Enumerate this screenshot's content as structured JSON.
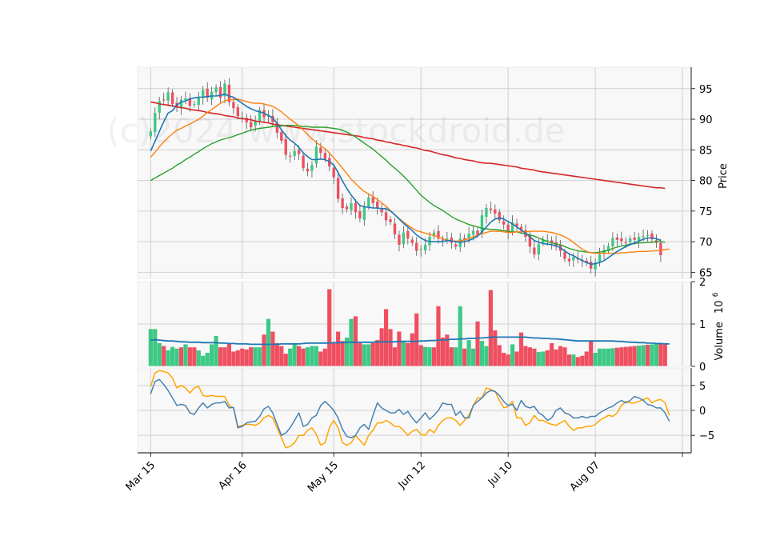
{
  "watermark": "(c)2024 www.stockdroid.de",
  "x_tick_labels": [
    "Mar 15",
    "Apr 16",
    "May 15",
    "Jun 12",
    "Jul 10",
    "Aug 07"
  ],
  "colors": {
    "up": "#3dc985",
    "down": "#ef4f60",
    "wick": "#555555",
    "ma_short": "#1f77b4",
    "ma_mid": "#ff7f0e",
    "ma_long": "#2ca02c",
    "ma_200": "#d62728",
    "vol_ma": "#1f77b4",
    "osc_a": "#4682b4",
    "osc_b": "#ffa500",
    "panel_bg": "#f8f8f8",
    "grid": "#d0d0d0"
  },
  "chart_data": [
    {
      "type": "candlestick",
      "ylabel": "Price",
      "ylim": [
        64,
        98.5
      ],
      "yticks": [
        65,
        70,
        75,
        80,
        85,
        90,
        95
      ],
      "x_range": [
        -3,
        124
      ],
      "x_tick_positions": [
        0,
        21,
        42,
        62,
        82,
        102,
        122
      ],
      "grid": true,
      "ohlc_close": [
        88,
        91,
        93,
        93.2,
        94.4,
        92.5,
        92,
        93.2,
        93.4,
        92.2,
        92.5,
        93.5,
        94.8,
        93.5,
        94.5,
        95.2,
        93.5,
        95.8,
        92.8,
        91.8,
        90.5,
        90.3,
        89.5,
        88.7,
        89.8,
        91.5,
        90.3,
        90.8,
        89.5,
        87.8,
        86.5,
        84.2,
        84,
        84.8,
        84.3,
        82,
        81.5,
        82.5,
        85.5,
        84.5,
        83.5,
        82.3,
        80.5,
        77,
        75.5,
        75.3,
        76.3,
        74.8,
        73.8,
        75.8,
        77.2,
        76.3,
        75.5,
        74.8,
        73.5,
        73.2,
        71.2,
        69.5,
        71.5,
        70.5,
        69.8,
        68.5,
        68.8,
        69.5,
        70.8,
        71.5,
        70.5,
        70.3,
        70.5,
        69.8,
        69.2,
        70.5,
        70.2,
        71.3,
        71.8,
        71.2,
        74.3,
        75.5,
        75.2,
        74.6,
        73.5,
        72.8,
        71.5,
        73.2,
        72.5,
        71.8,
        70.8,
        69.2,
        67.9,
        69.6,
        70.4,
        70.3,
        69.8,
        69.2,
        68.5,
        67.2,
        66.8,
        67.5,
        67.1,
        66.8,
        66.5,
        65.6,
        66.6,
        67.9,
        68.7,
        69.3,
        70.6,
        70.3,
        70.1,
        69.9,
        70.5,
        70.3,
        70.8,
        70.9,
        71.1,
        70.4,
        69.8,
        67.8
      ],
      "ma_short": [
        84.8,
        86.4,
        88,
        89.6,
        91,
        91.4,
        92.3,
        92.8,
        93,
        93.3,
        93.5,
        93.6,
        93.6,
        93.7,
        93.8,
        93.8,
        93.9,
        94.1,
        93.8,
        93.6,
        93.1,
        92.6,
        92.1,
        91.7,
        91.4,
        91.2,
        91,
        90.6,
        90.2,
        89.3,
        88.3,
        87.3,
        86.6,
        86.1,
        85.4,
        84.5,
        83.9,
        83.4,
        83.4,
        83.5,
        83.4,
        83.1,
        82.5,
        81.3,
        79.9,
        78.7,
        77.6,
        76.7,
        75.9,
        75.7,
        75.6,
        75.5,
        75.5,
        75.4,
        75.4,
        75,
        74.4,
        73.7,
        73,
        72.4,
        71.8,
        71.1,
        70.6,
        70.2,
        70,
        70,
        70,
        70,
        70.2,
        70.1,
        70,
        69.9,
        70,
        70.2,
        70.5,
        70.9,
        71.6,
        72.4,
        73.2,
        73.7,
        73.9,
        73.7,
        73.3,
        72.9,
        72.4,
        71.9,
        71.4,
        70.8,
        70.2,
        69.9,
        69.7,
        69.6,
        69.5,
        69.3,
        69,
        68.5,
        68,
        67.7,
        67.3,
        66.9,
        66.6,
        66.3,
        66.4,
        66.6,
        66.9,
        67.4,
        67.9,
        68.4,
        68.8,
        69.2,
        69.5,
        69.8,
        70.1,
        70.4,
        70.6,
        70.6,
        70.5,
        70.2
      ],
      "ma_mid": [
        83.8,
        84.6,
        85.5,
        86.3,
        87,
        87.6,
        88.2,
        88.5,
        88.9,
        89.2,
        89.6,
        90,
        90.5,
        91.1,
        91.6,
        92.1,
        92.6,
        93,
        93.2,
        93.2,
        93.3,
        93.1,
        92.9,
        92.7,
        92.6,
        92.6,
        92.5,
        92.3,
        92.1,
        91.7,
        91.2,
        90.6,
        90,
        89.5,
        88.9,
        88.2,
        87.5,
        86.8,
        86.2,
        85.7,
        85.2,
        84.5,
        83.7,
        82.9,
        82,
        81.1,
        80.2,
        79.5,
        78.8,
        78.2,
        77.8,
        77.4,
        76.9,
        76.3,
        75.8,
        75.1,
        74.4,
        73.8,
        73.2,
        72.7,
        72.2,
        71.8,
        71.6,
        71.4,
        71.2,
        71,
        70.8,
        70.5,
        70.2,
        70.1,
        70.1,
        70.1,
        70.3,
        70.5,
        70.8,
        71.1,
        71.3,
        71.5,
        71.7,
        71.7,
        71.7,
        71.6,
        71.5,
        71.5,
        71.6,
        71.6,
        71.6,
        71.7,
        71.7,
        71.7,
        71.7,
        71.6,
        71.5,
        71.3,
        71.1,
        70.8,
        70.4,
        69.9,
        69.3,
        68.8,
        68.4,
        68.2,
        68.1,
        68.1,
        68.1,
        68.1,
        68.1,
        68.1,
        68.2,
        68.2,
        68.3,
        68.3,
        68.4,
        68.4,
        68.4,
        68.5,
        68.5,
        68.6,
        68.7,
        68.8
      ],
      "ma_long": [
        80,
        80.4,
        80.8,
        81.2,
        81.6,
        82,
        82.5,
        82.9,
        83.4,
        83.8,
        84.3,
        84.7,
        85.2,
        85.6,
        86,
        86.3,
        86.6,
        86.8,
        87,
        87.2,
        87.5,
        87.7,
        88,
        88.2,
        88.4,
        88.5,
        88.6,
        88.7,
        88.8,
        88.9,
        88.9,
        89,
        89,
        89,
        88.9,
        88.8,
        88.8,
        88.7,
        88.7,
        88.7,
        88.7,
        88.6,
        88.5,
        88.4,
        88.2,
        87.9,
        87.5,
        87.1,
        86.6,
        86.1,
        85.6,
        85.1,
        84.5,
        83.9,
        83.3,
        82.6,
        82,
        81.4,
        80.7,
        80,
        79.2,
        78.4,
        77.6,
        77,
        76.4,
        75.9,
        75.5,
        75.1,
        74.6,
        74.1,
        73.7,
        73.4,
        73.1,
        72.8,
        72.6,
        72.4,
        72.2,
        72.1,
        72,
        72,
        71.9,
        71.8,
        71.7,
        71.6,
        71.6,
        71.4,
        71.3,
        71.1,
        70.9,
        70.6,
        70.3,
        70,
        69.8,
        69.6,
        69.5,
        69.2,
        68.9,
        68.7,
        68.5,
        68.4,
        68.3,
        68.2,
        68.2,
        68.3,
        68.4,
        68.6,
        68.9,
        69.1,
        69.3,
        69.4,
        69.6,
        69.7,
        69.8,
        69.8,
        69.9,
        69.9,
        70,
        70,
        69.9
      ],
      "ma_200": [
        92.8,
        92.7,
        92.5,
        92.4,
        92.3,
        92.2,
        92,
        91.9,
        91.8,
        91.6,
        91.5,
        91.4,
        91.3,
        91.1,
        91,
        90.9,
        90.8,
        90.6,
        90.5,
        90.4,
        90.2,
        90.1,
        90,
        89.9,
        89.7,
        89.6,
        89.5,
        89.4,
        89.2,
        89.1,
        89,
        88.9,
        88.8,
        88.7,
        88.6,
        88.5,
        88.4,
        88.3,
        88.2,
        88.1,
        88,
        87.9,
        87.8,
        87.7,
        87.6,
        87.5,
        87.4,
        87.3,
        87.2,
        87,
        86.9,
        86.8,
        86.6,
        86.5,
        86.3,
        86.2,
        86,
        85.9,
        85.7,
        85.6,
        85.4,
        85.3,
        85.1,
        84.9,
        84.8,
        84.6,
        84.4,
        84.2,
        84.1,
        83.9,
        83.7,
        83.6,
        83.4,
        83.3,
        83.2,
        83,
        82.9,
        82.8,
        82.8,
        82.7,
        82.6,
        82.5,
        82.4,
        82.3,
        82.2,
        82,
        81.9,
        81.8,
        81.7,
        81.5,
        81.4,
        81.3,
        81.2,
        81.1,
        81,
        80.9,
        80.8,
        80.7,
        80.6,
        80.5,
        80.4,
        80.3,
        80.2,
        80.1,
        80,
        79.9,
        79.8,
        79.7,
        79.6,
        79.5,
        79.4,
        79.3,
        79.2,
        79.1,
        79,
        78.9,
        78.8,
        78.8,
        78.7
      ]
    },
    {
      "type": "bar",
      "ylabel": "Volume",
      "yunit": "10",
      "yunit_exp": "6",
      "ylim": [
        0,
        2
      ],
      "yticks": [
        0,
        1,
        2
      ],
      "direction": [
        "up",
        "up",
        "up",
        "down",
        "up",
        "up",
        "up",
        "down",
        "up",
        "down",
        "down",
        "up",
        "up",
        "up",
        "up",
        "up",
        "down",
        "down",
        "down",
        "down",
        "down",
        "down",
        "down",
        "down",
        "up",
        "up",
        "down",
        "up",
        "down",
        "down",
        "down",
        "down",
        "up",
        "up",
        "down",
        "down",
        "up",
        "up",
        "up",
        "down",
        "down",
        "down",
        "down",
        "down",
        "down",
        "up",
        "up",
        "down",
        "down",
        "up",
        "up",
        "down",
        "down",
        "down",
        "down",
        "down",
        "down",
        "down",
        "up",
        "down",
        "down",
        "down",
        "down",
        "up",
        "up",
        "down",
        "down",
        "down",
        "down",
        "down",
        "up",
        "up",
        "down",
        "up",
        "up",
        "down",
        "up",
        "up",
        "down",
        "down",
        "down",
        "down",
        "down",
        "up",
        "down",
        "down",
        "down",
        "down",
        "down",
        "up",
        "up",
        "down",
        "down",
        "down",
        "down",
        "down",
        "down",
        "up",
        "down",
        "down",
        "down",
        "down",
        "up",
        "up",
        "up",
        "up",
        "up",
        "down",
        "down",
        "down",
        "down",
        "down",
        "up",
        "up",
        "down",
        "up",
        "up",
        "down"
      ],
      "values": [
        0.88,
        0.88,
        0.55,
        0.48,
        0.38,
        0.46,
        0.42,
        0.45,
        0.52,
        0.45,
        0.45,
        0.38,
        0.25,
        0.32,
        0.52,
        0.72,
        0.45,
        0.45,
        0.55,
        0.35,
        0.38,
        0.42,
        0.4,
        0.45,
        0.45,
        0.45,
        0.75,
        1.12,
        0.82,
        0.55,
        0.48,
        0.3,
        0.42,
        0.55,
        0.48,
        0.42,
        0.45,
        0.48,
        0.48,
        0.35,
        0.42,
        1.82,
        0.55,
        0.82,
        0.6,
        0.68,
        1.12,
        1.18,
        0.55,
        0.52,
        0.52,
        0.55,
        0.62,
        0.9,
        1.35,
        0.88,
        0.45,
        0.82,
        0.58,
        0.55,
        0.78,
        1.25,
        0.5,
        0.46,
        0.45,
        0.45,
        1.42,
        0.68,
        0.75,
        0.45,
        0.45,
        1.42,
        0.42,
        0.62,
        0.42,
        1.06,
        0.6,
        0.48,
        1.8,
        0.85,
        0.5,
        0.32,
        0.28,
        0.52,
        0.35,
        0.8,
        0.48,
        0.45,
        0.42,
        0.34,
        0.35,
        0.38,
        0.55,
        0.4,
        0.48,
        0.45,
        0.28,
        0.28,
        0.22,
        0.25,
        0.35,
        0.6,
        0.32,
        0.42,
        0.42,
        0.42,
        0.43,
        0.44,
        0.45,
        0.46,
        0.47,
        0.48,
        0.49,
        0.5,
        0.51,
        0.52,
        0.53,
        0.54,
        0.55
      ],
      "ma": [
        0.62,
        0.63,
        0.62,
        0.61,
        0.6,
        0.6,
        0.59,
        0.58,
        0.58,
        0.57,
        0.57,
        0.57,
        0.56,
        0.56,
        0.56,
        0.56,
        0.55,
        0.55,
        0.54,
        0.54,
        0.53,
        0.53,
        0.53,
        0.52,
        0.52,
        0.52,
        0.52,
        0.52,
        0.52,
        0.52,
        0.53,
        0.53,
        0.53,
        0.53,
        0.53,
        0.54,
        0.55,
        0.55,
        0.55,
        0.55,
        0.55,
        0.55,
        0.56,
        0.56,
        0.56,
        0.57,
        0.57,
        0.57,
        0.57,
        0.57,
        0.57,
        0.57,
        0.58,
        0.58,
        0.58,
        0.58,
        0.58,
        0.59,
        0.59,
        0.59,
        0.59,
        0.59,
        0.6,
        0.6,
        0.61,
        0.61,
        0.62,
        0.62,
        0.63,
        0.64,
        0.64,
        0.65,
        0.65,
        0.66,
        0.66,
        0.67,
        0.67,
        0.68,
        0.69,
        0.69,
        0.69,
        0.69,
        0.69,
        0.69,
        0.69,
        0.69,
        0.69,
        0.68,
        0.67,
        0.67,
        0.66,
        0.66,
        0.65,
        0.65,
        0.64,
        0.63,
        0.62,
        0.61,
        0.6,
        0.6,
        0.6,
        0.6,
        0.6,
        0.6,
        0.6,
        0.6,
        0.6,
        0.59,
        0.59,
        0.58,
        0.57,
        0.57,
        0.56,
        0.56,
        0.55,
        0.55,
        0.54,
        0.54,
        0.53,
        0.53
      ]
    },
    {
      "type": "line",
      "ylim": [
        -8.5,
        8.5
      ],
      "yticks": [
        -5,
        0,
        5
      ],
      "ytick_labels": [
        "−5",
        "0",
        "5"
      ],
      "series": [
        {
          "values": [
            3.3,
            5.8,
            6.2,
            5.2,
            4,
            2.5,
            1,
            1.2,
            1,
            -0.5,
            -0.8,
            0.5,
            1.5,
            0.5,
            1.2,
            1.5,
            1.5,
            1.8,
            0.5,
            0.6,
            -3.5,
            -3.2,
            -2.5,
            -2.3,
            -2.2,
            -1.2,
            0.3,
            0.8,
            -0.5,
            -2.8,
            -5,
            -4.5,
            -3.5,
            -2,
            -0.5,
            -3.2,
            -2.8,
            -1.5,
            -1,
            1,
            1.8,
            1,
            0,
            -1.5,
            -3.8,
            -5.2,
            -5.5,
            -5,
            -3.5,
            -2.8,
            -3.8,
            -1,
            1.5,
            0.5,
            0,
            -0.5,
            -0.5,
            0.2,
            -0.8,
            -0.2,
            -1.5,
            -2.5,
            -1.5,
            -0.5,
            -1.8,
            -1,
            0,
            1.5,
            1.2,
            1.2,
            -1,
            -0.2,
            -1.5,
            -1.5,
            1,
            1.8,
            2.5,
            3.5,
            4,
            3.8,
            3,
            1.8,
            1,
            1.2,
            0,
            2,
            0.8,
            0.5,
            0.8,
            -0.5,
            -1,
            -2,
            -1.5,
            0,
            0.5,
            -0.5,
            -0.8,
            -1.5,
            -1.5,
            -1.2,
            -1.5,
            -1.2,
            -1.2,
            -0.5,
            0,
            0.5,
            0.8,
            1.5,
            2,
            1.5,
            2,
            2.8,
            2.5,
            2,
            1.2,
            1,
            0.5,
            0.5,
            -0.5,
            -2.2
          ]
        },
        {
          "values": [
            4.8,
            7.5,
            8,
            7.8,
            7.5,
            6.5,
            4.5,
            5,
            4.5,
            3.5,
            4.5,
            4.8,
            3,
            2.8,
            3,
            2.8,
            2.8,
            2.8,
            1,
            0.5,
            -3.2,
            -3,
            -2.8,
            -2.8,
            -3,
            -2.5,
            -1.5,
            -1,
            -1.5,
            -3.5,
            -5.5,
            -7.5,
            -7.2,
            -6.5,
            -5,
            -5,
            -4,
            -3.5,
            -4.8,
            -7,
            -6.5,
            -3.5,
            -2,
            -3.5,
            -6.5,
            -7,
            -6.5,
            -5,
            -6,
            -7,
            -5,
            -4,
            -2.5,
            -2.5,
            -2,
            -2.5,
            -3.2,
            -3.2,
            -4,
            -5,
            -4.2,
            -3.8,
            -4.8,
            -5,
            -3.8,
            -4.5,
            -3,
            -2,
            -1.5,
            -1.5,
            -2,
            -3,
            -2,
            -1,
            1,
            2.5,
            2.5,
            4.5,
            4.2,
            3.8,
            2,
            0.5,
            0.8,
            1.8,
            -1.5,
            -1.5,
            -3,
            -2.5,
            -1,
            -2,
            -2,
            -2.5,
            -2.8,
            -3,
            -2.5,
            -2,
            -3.2,
            -4,
            -3.5,
            -3.5,
            -3.2,
            -3.2,
            -2.8,
            -2,
            -1.5,
            -1,
            -1.2,
            -0.5,
            1,
            1.8,
            1.5,
            1.5,
            1.8,
            2.2,
            2.5,
            1.5,
            2,
            2.2,
            1.5,
            -1
          ]
        }
      ]
    }
  ]
}
